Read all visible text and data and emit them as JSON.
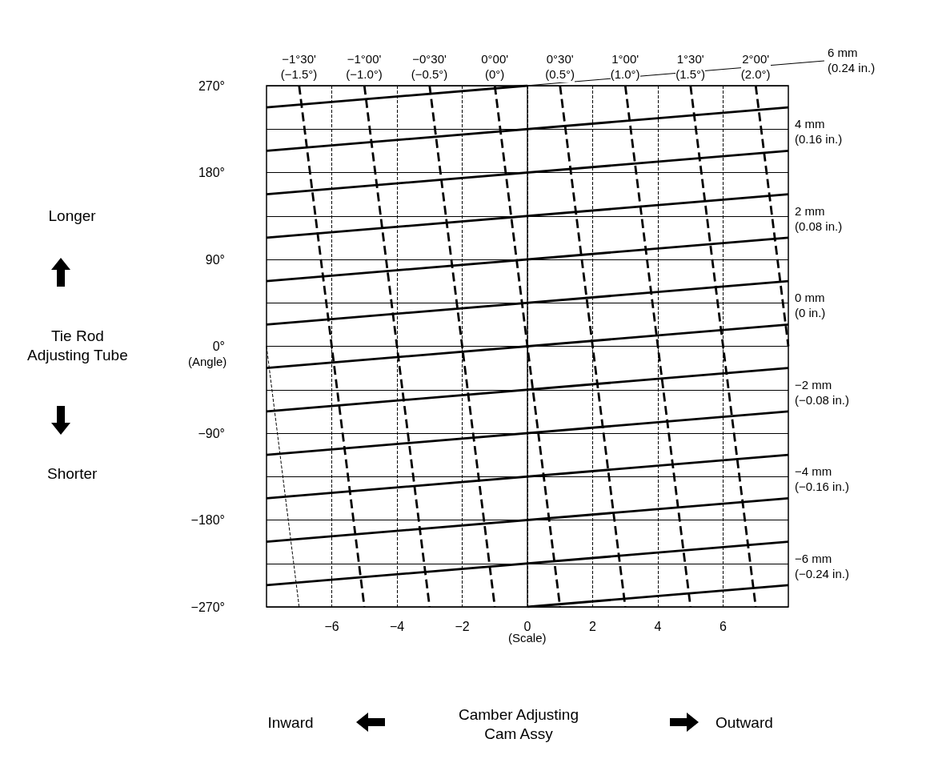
{
  "chart_data": {
    "type": "line",
    "xlabel": "(Scale)",
    "ylabel": "(Angle)",
    "xlim": [
      -8,
      8
    ],
    "xticks": [
      {
        "value": -6,
        "label": "−6"
      },
      {
        "value": -4,
        "label": "−4"
      },
      {
        "value": -2,
        "label": "−2"
      },
      0,
      2,
      4,
      6
    ],
    "ylim": [
      -270,
      270
    ],
    "yticks": [
      {
        "value": -270,
        "label": "−270°"
      },
      {
        "value": -225,
        "label": null
      },
      {
        "value": -180,
        "label": "−180°"
      },
      {
        "value": -135,
        "label": null
      },
      {
        "value": -90,
        "label": "−90°"
      },
      {
        "value": -45,
        "label": null
      },
      {
        "value": 0,
        "label": "0°"
      },
      {
        "value": 45,
        "label": null
      },
      {
        "value": 90,
        "label": "90°"
      },
      {
        "value": 135,
        "label": null
      },
      {
        "value": 180,
        "label": "180°"
      },
      {
        "value": 225,
        "label": null
      },
      {
        "value": 270,
        "label": "270°"
      }
    ],
    "grid": true,
    "legend": false,
    "ref_lines": [
      {
        "axis": "x",
        "value": 0,
        "color": "#000000",
        "line_style": "solid"
      }
    ],
    "series": [
      {
        "name": "6 mm\n(0.24 in.)",
        "color": "#000000",
        "line_style": "solid",
        "x": [
          -8,
          0
        ],
        "values": [
          247.5,
          270
        ]
      },
      {
        "color": "#000000",
        "line_style": "solid",
        "x": [
          -8,
          8
        ],
        "values": [
          202.5,
          247.5
        ]
      },
      {
        "name": "4 mm\n(0.16 in.)",
        "color": "#000000",
        "line_style": "solid",
        "x": [
          -8,
          8
        ],
        "values": [
          157.5,
          202.5
        ]
      },
      {
        "color": "#000000",
        "line_style": "solid",
        "x": [
          -8,
          8
        ],
        "values": [
          112.5,
          157.5
        ]
      },
      {
        "name": "2 mm\n(0.08 in.)",
        "color": "#000000",
        "line_style": "solid",
        "x": [
          -8,
          8
        ],
        "values": [
          67.5,
          112.5
        ]
      },
      {
        "color": "#000000",
        "line_style": "solid",
        "x": [
          -8,
          8
        ],
        "values": [
          22.5,
          67.5
        ]
      },
      {
        "name": "0 mm\n(0 in.)",
        "color": "#000000",
        "line_style": "solid",
        "x": [
          -8,
          8
        ],
        "values": [
          -22.5,
          22.5
        ]
      },
      {
        "color": "#000000",
        "line_style": "solid",
        "x": [
          -8,
          8
        ],
        "values": [
          -67.5,
          -22.5
        ]
      },
      {
        "name": "−2 mm\n(−0.08 in.)",
        "color": "#000000",
        "line_style": "solid",
        "x": [
          -8,
          8
        ],
        "values": [
          -112.5,
          -67.5
        ]
      },
      {
        "color": "#000000",
        "line_style": "solid",
        "x": [
          -8,
          8
        ],
        "values": [
          -157.5,
          -112.5
        ]
      },
      {
        "name": "−4 mm\n(−0.16 in.)",
        "color": "#000000",
        "line_style": "solid",
        "x": [
          -8,
          8
        ],
        "values": [
          -202.5,
          -157.5
        ]
      },
      {
        "color": "#000000",
        "line_style": "solid",
        "x": [
          -8,
          8
        ],
        "values": [
          -247.5,
          -202.5
        ]
      },
      {
        "name": "−6 mm\n(−0.24 in.)",
        "color": "#000000",
        "line_style": "solid",
        "x": [
          0,
          8
        ],
        "values": [
          -270,
          -247.5
        ]
      },
      {
        "color": "#000000",
        "line_style": "dashed",
        "x": [
          -8,
          -7
        ],
        "values": [
          0,
          -270
        ]
      },
      {
        "name": "−1°30'\n(−1.5°)",
        "color": "#000000",
        "line_style": "dashed",
        "x": [
          -7,
          -5
        ],
        "values": [
          270,
          -270
        ]
      },
      {
        "name": "−1°00'\n(−1.0°)",
        "color": "#000000",
        "line_style": "dashed",
        "x": [
          -5,
          -3
        ],
        "values": [
          270,
          -270
        ]
      },
      {
        "name": "−0°30'\n(−0.5°)",
        "color": "#000000",
        "line_style": "dashed",
        "x": [
          -3,
          -1
        ],
        "values": [
          270,
          -270
        ]
      },
      {
        "name": "0°00'\n(0°)",
        "color": "#000000",
        "line_style": "dashed",
        "x": [
          -1,
          1
        ],
        "values": [
          270,
          -270
        ]
      },
      {
        "name": "0°30'\n(0.5°)",
        "color": "#000000",
        "line_style": "dashed",
        "x": [
          1,
          3
        ],
        "values": [
          270,
          -270
        ]
      },
      {
        "name": "1°00'\n(1.0°)",
        "color": "#000000",
        "line_style": "dashed",
        "x": [
          3,
          5
        ],
        "values": [
          270,
          -270
        ]
      },
      {
        "name": "1°30'\n(1.5°)",
        "color": "#000000",
        "line_style": "dashed",
        "x": [
          5,
          7
        ],
        "values": [
          270,
          -270
        ]
      },
      {
        "name": "2°00'\n(2.0°)",
        "color": "#000000",
        "line_style": "dashed",
        "x": [
          7,
          8
        ],
        "values": [
          270,
          0
        ]
      }
    ],
    "annotations": [
      "Longer",
      "Tie Rod\nAdjusting Tube",
      "Shorter",
      "Inward",
      "Camber Adjusting\nCam Assy",
      "Outward"
    ]
  }
}
